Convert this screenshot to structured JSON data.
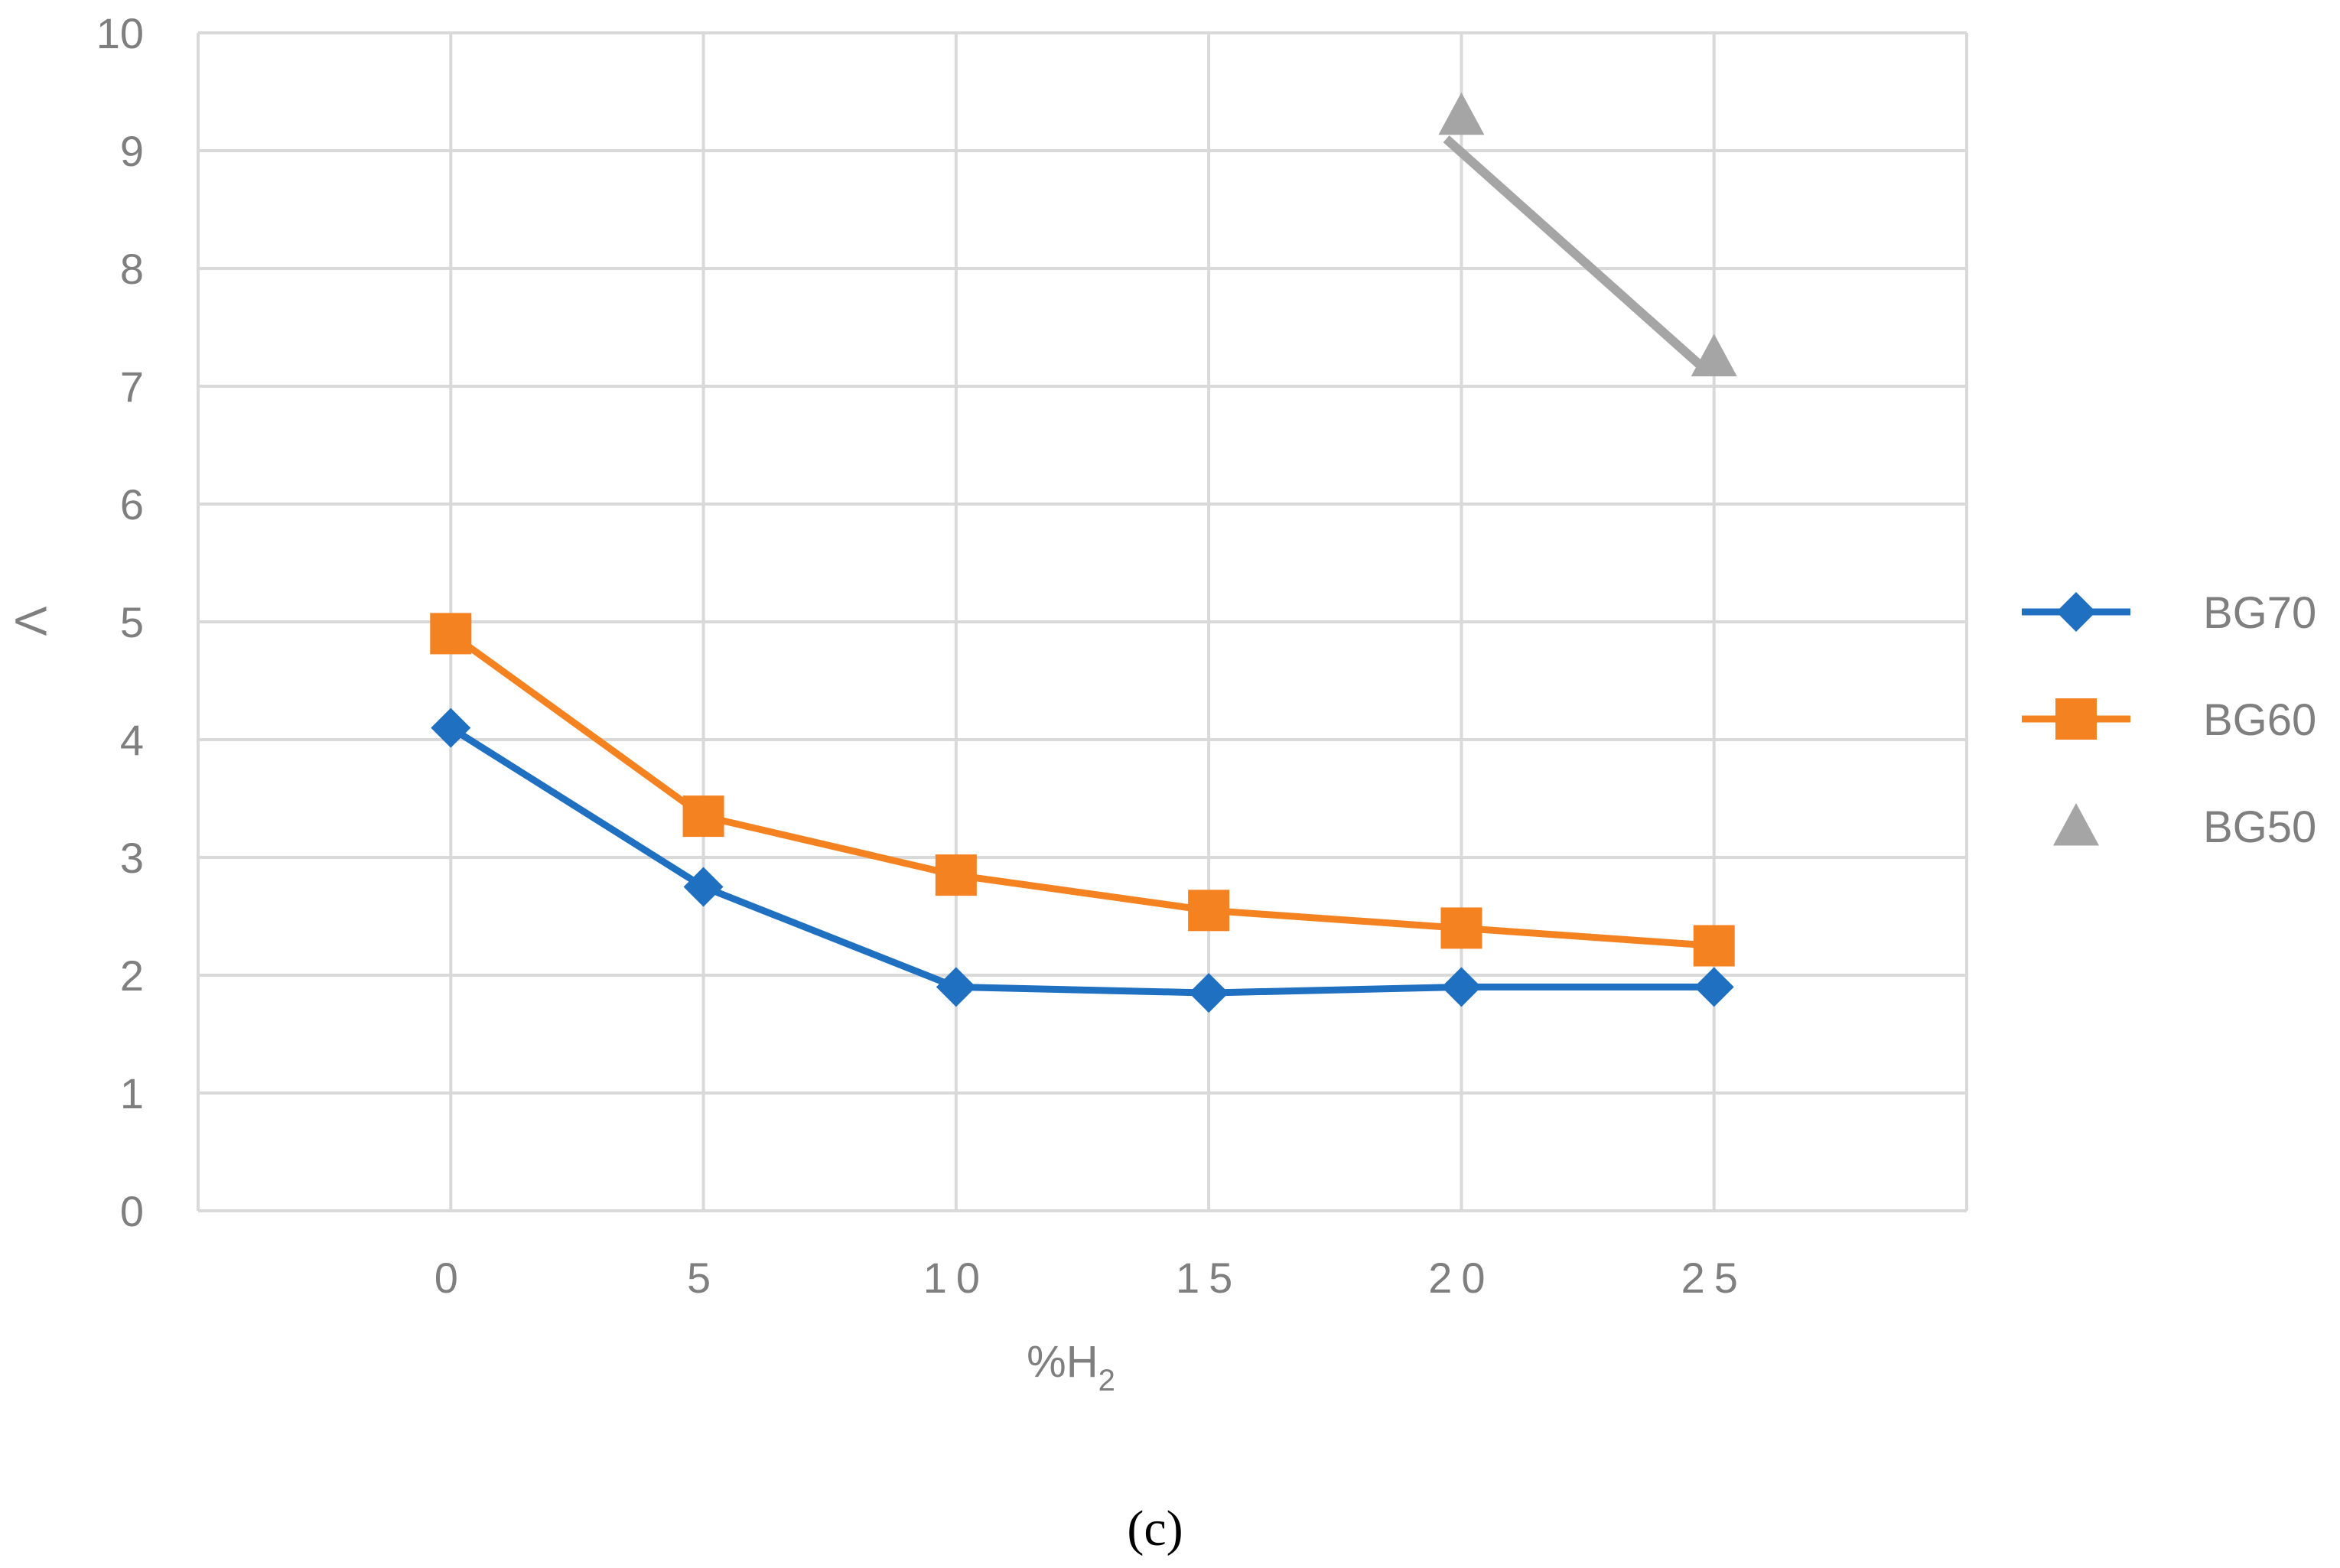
{
  "chart_data": {
    "type": "line",
    "title": "",
    "panel_label": "(c)",
    "xlabel": "%H",
    "xlabel_subscript": "2",
    "ylabel": "Λ",
    "xlim": [
      -5,
      30
    ],
    "ylim": [
      0,
      10
    ],
    "x_ticks": [
      "0",
      "5",
      "10",
      "15",
      "20",
      "25"
    ],
    "y_ticks": [
      "0",
      "1",
      "2",
      "3",
      "4",
      "5",
      "6",
      "7",
      "8",
      "9",
      "10"
    ],
    "grid": true,
    "legend_position": "right",
    "series": [
      {
        "name": "BG70",
        "color": "#1f70c1",
        "marker": "diamond",
        "line": true,
        "x": [
          0,
          5,
          10,
          15,
          20,
          25
        ],
        "y": [
          4.1,
          2.75,
          1.9,
          1.85,
          1.9,
          1.9
        ]
      },
      {
        "name": "BG60",
        "color": "#f58220",
        "marker": "square",
        "line": true,
        "x": [
          0,
          5,
          10,
          15,
          20,
          25
        ],
        "y": [
          4.9,
          3.35,
          2.85,
          2.55,
          2.4,
          2.25
        ]
      },
      {
        "name": "BG50",
        "color": "#a5a5a5",
        "marker": "triangle",
        "line": false,
        "x": [
          20,
          25
        ],
        "y": [
          9.3,
          7.25
        ]
      }
    ],
    "annotations": [
      {
        "type": "trend-line",
        "color": "#a5a5a5",
        "from": [
          19.7,
          9.1
        ],
        "to": [
          24.8,
          7.15
        ]
      }
    ]
  }
}
